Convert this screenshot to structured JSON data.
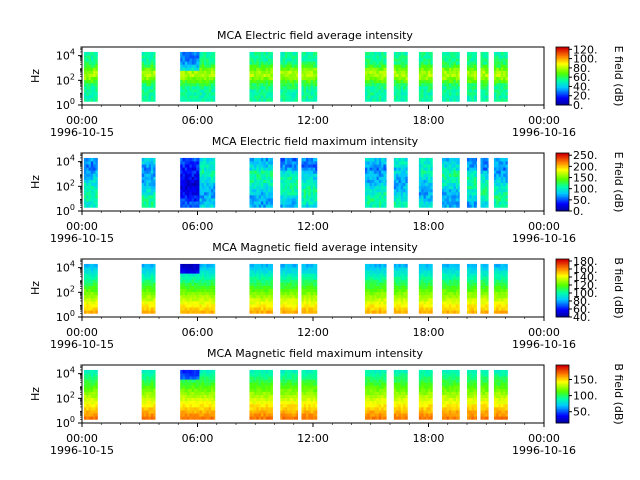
{
  "chart_data": [
    {
      "type": "heatmap",
      "title": "MCA  Electric field average intensity",
      "ylabel": "Hz",
      "colorbar_label": "E field (dB)",
      "colorbar_ticks": [
        "0.",
        "20.",
        "40.",
        "60.",
        "80.",
        "100.",
        "120."
      ],
      "colorbar_range": [
        0,
        125
      ],
      "y_ticks": [
        {
          "exp": 0,
          "label": "10"
        },
        {
          "exp": 2,
          "label": "10"
        },
        {
          "exp": 4,
          "label": "10"
        }
      ],
      "x_ticks": [
        "00:00",
        "06:00",
        "12:00",
        "18:00",
        "00:00"
      ],
      "x_dates": [
        "1996-10-15",
        "1996-10-16"
      ],
      "profile": "e_avg"
    },
    {
      "type": "heatmap",
      "title": "MCA  Electric field maximum intensity",
      "ylabel": "Hz",
      "colorbar_label": "E field (dB)",
      "colorbar_ticks": [
        "0.",
        "50.",
        "100.",
        "150.",
        "200.",
        "250."
      ],
      "colorbar_range": [
        0,
        260
      ],
      "y_ticks": [
        {
          "exp": 0,
          "label": "10"
        },
        {
          "exp": 2,
          "label": "10"
        },
        {
          "exp": 4,
          "label": "10"
        }
      ],
      "x_ticks": [
        "00:00",
        "06:00",
        "12:00",
        "18:00",
        "00:00"
      ],
      "x_dates": [
        "1996-10-15",
        "1996-10-16"
      ],
      "profile": "e_max"
    },
    {
      "type": "heatmap",
      "title": "MCA  Magnetic field average intensity",
      "ylabel": "Hz",
      "colorbar_label": "B field (dB)",
      "colorbar_ticks": [
        "40.",
        "60.",
        "80.",
        "100.",
        "120.",
        "140.",
        "160.",
        "180."
      ],
      "colorbar_range": [
        40,
        185
      ],
      "y_ticks": [
        {
          "exp": 0,
          "label": "10"
        },
        {
          "exp": 2,
          "label": "10"
        },
        {
          "exp": 4,
          "label": "10"
        }
      ],
      "x_ticks": [
        "00:00",
        "06:00",
        "12:00",
        "18:00",
        "00:00"
      ],
      "x_dates": [
        "1996-10-15",
        "1996-10-16"
      ],
      "profile": "b_avg"
    },
    {
      "type": "heatmap",
      "title": "MCA  Magnetic field maximum intensity",
      "ylabel": "Hz",
      "colorbar_label": "B field (dB)",
      "colorbar_ticks": [
        "50.",
        "100.",
        "150."
      ],
      "colorbar_range": [
        15,
        195
      ],
      "y_ticks": [
        {
          "exp": 0,
          "label": "10"
        },
        {
          "exp": 2,
          "label": "10"
        },
        {
          "exp": 4,
          "label": "10"
        }
      ],
      "x_ticks": [
        "00:00",
        "06:00",
        "12:00",
        "18:00",
        "00:00"
      ],
      "x_dates": [
        "1996-10-15",
        "1996-10-16"
      ],
      "profile": "b_max"
    }
  ],
  "x_range_hours": [
    0,
    24
  ],
  "y_range_log10_hz": [
    0,
    4.7
  ],
  "data_segments_hours": [
    [
      0.1,
      0.8
    ],
    [
      3.1,
      3.8
    ],
    [
      5.1,
      6.1
    ],
    [
      6.1,
      6.9
    ],
    [
      8.7,
      9.9
    ],
    [
      10.3,
      11.2
    ],
    [
      11.4,
      12.2
    ],
    [
      14.7,
      15.8
    ],
    [
      16.2,
      16.9
    ],
    [
      17.5,
      18.2
    ],
    [
      18.7,
      19.6
    ],
    [
      20.0,
      20.5
    ],
    [
      20.7,
      21.1
    ],
    [
      21.4,
      22.1
    ]
  ],
  "data_freq_range_log10_hz": [
    0.3,
    4.3
  ]
}
